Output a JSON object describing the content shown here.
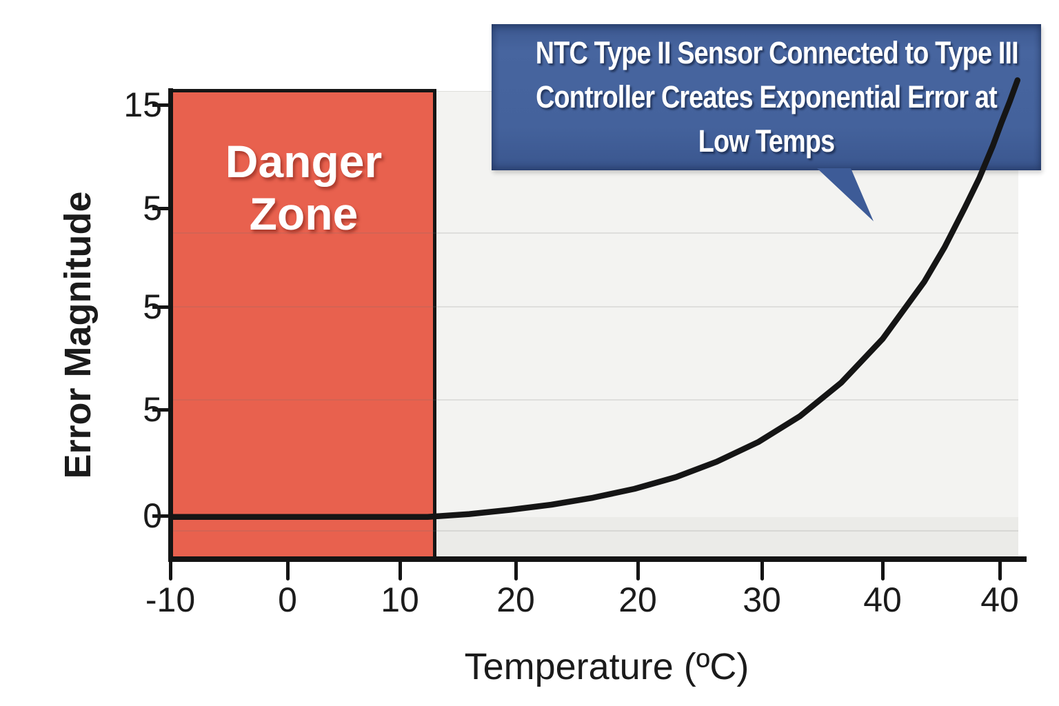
{
  "chart_data": {
    "type": "line",
    "xlabel": "Temperature (ºC)",
    "ylabel": "Error Magnitude",
    "x_tick_labels": [
      "-10",
      "0",
      "10",
      "20",
      "20",
      "30",
      "40",
      "40"
    ],
    "y_tick_labels": [
      "15",
      "5",
      "5",
      "5",
      "0"
    ],
    "grid": "faint horizontal gridlines on light-gray plot background",
    "legend": "none",
    "series": [
      {
        "name": "exponential-error-curve",
        "description": "thick black curve: flat at error 0 across the red danger zone (low temperatures), lifting off near the zone's right edge and rising exponentially to the top right corner of the plot",
        "points_norm": [
          [
            0.0,
            0.089
          ],
          [
            0.083,
            0.089
          ],
          [
            0.164,
            0.089
          ],
          [
            0.246,
            0.089
          ],
          [
            0.303,
            0.089
          ],
          [
            0.352,
            0.095
          ],
          [
            0.4,
            0.104
          ],
          [
            0.449,
            0.115
          ],
          [
            0.498,
            0.13
          ],
          [
            0.547,
            0.149
          ],
          [
            0.596,
            0.174
          ],
          [
            0.644,
            0.207
          ],
          [
            0.693,
            0.249
          ],
          [
            0.742,
            0.304
          ],
          [
            0.791,
            0.376
          ],
          [
            0.84,
            0.47
          ],
          [
            0.889,
            0.592
          ],
          [
            0.913,
            0.666
          ],
          [
            0.937,
            0.751
          ],
          [
            0.954,
            0.814
          ],
          [
            0.97,
            0.883
          ],
          [
            0.98,
            0.932
          ],
          [
            0.99,
            0.978
          ],
          [
            0.999,
            1.023
          ]
        ]
      }
    ],
    "annotations": {
      "danger_zone": {
        "label_lines": [
          "Danger",
          "Zone"
        ],
        "region": "red shaded band covering the left portion of the plot, from the y-axis to just past the 10 tick"
      },
      "callout": {
        "lines": [
          "NTC Type II Sensor Connected to Type III",
          "Controller Creates Exponential Error at",
          "Low Temps"
        ],
        "shape": "dark blue rectangle with downward speech-bubble tail pointing toward the curve"
      }
    },
    "colors": {
      "danger_zone_fill": "#e8614e",
      "danger_zone_border": "#161616",
      "callout_fill": "#42619d",
      "callout_text": "#ffffff",
      "curve": "#151515",
      "axis": "#141414",
      "plot_bg": "#f3f3f1",
      "tick_text": "#1b1b1b"
    }
  }
}
